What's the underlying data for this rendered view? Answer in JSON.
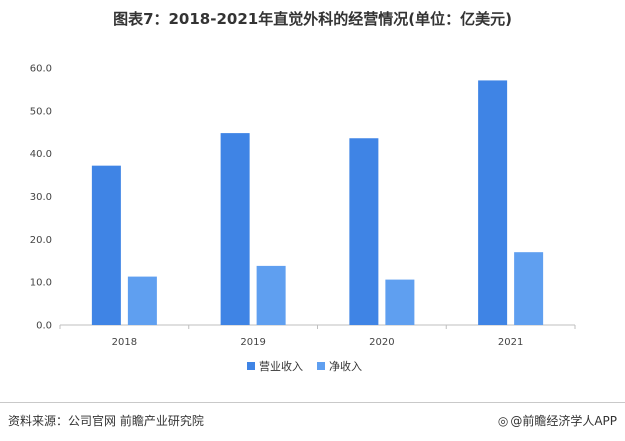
{
  "title": "图表7：2018-2021年直觉外科的经营情况(单位：亿美元)",
  "chart_data": {
    "type": "bar",
    "title": "图表7：2018-2021年直觉外科的经营情况(单位：亿美元)",
    "categories": [
      "2018",
      "2019",
      "2020",
      "2021"
    ],
    "series": [
      {
        "name": "营业收入",
        "values": [
          37.2,
          44.8,
          43.6,
          57.1
        ],
        "color": "#3f84e5"
      },
      {
        "name": "净收入",
        "values": [
          11.3,
          13.8,
          10.6,
          17.0
        ],
        "color": "#5f9ff0"
      }
    ],
    "ylim": [
      0,
      60
    ],
    "yticks": [
      "0.0",
      "10.0",
      "20.0",
      "30.0",
      "40.0",
      "50.0",
      "60.0"
    ],
    "xlabel": "",
    "ylabel": "",
    "legend": "bottom",
    "grid": false
  },
  "footer": {
    "source": "资料来源：公司官网 前瞻产业研究院",
    "brand_icon": "brand-logo-icon",
    "brand": "@前瞻经济学人APP"
  }
}
